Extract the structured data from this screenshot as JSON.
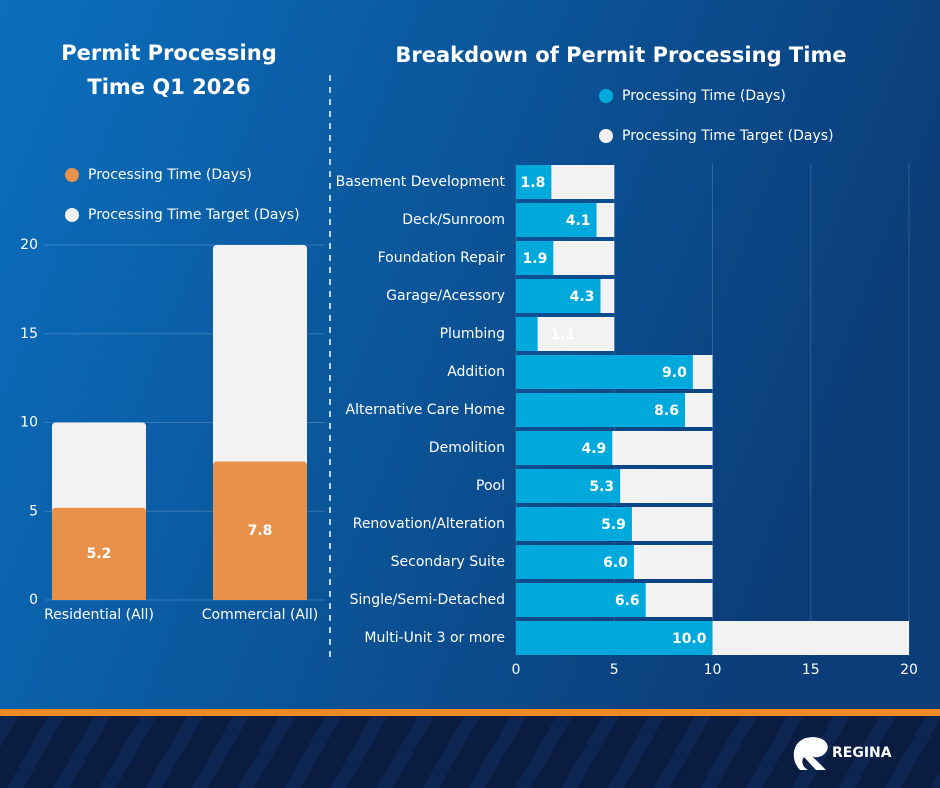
{
  "chart_data": [
    {
      "type": "bar",
      "orientation": "vertical",
      "barmode": "overlay",
      "title": "Permit Processing Time Q1 2026",
      "categories": [
        "Residential (All)",
        "Commercial (All)"
      ],
      "series": [
        {
          "name": "Processing Time (Days)",
          "color": "#e8914a",
          "values": [
            5.2,
            7.8
          ]
        },
        {
          "name": "Processing Time Target (Days)",
          "color": "#f2f2f2",
          "values": [
            10,
            20
          ]
        }
      ],
      "ylim": [
        0,
        20
      ],
      "yticks": [
        0,
        5,
        10,
        15,
        20
      ],
      "grid": true
    },
    {
      "type": "bar",
      "orientation": "horizontal",
      "barmode": "overlay",
      "title": "Breakdown of Permit Processing Time",
      "categories": [
        "Basement Development",
        "Deck/Sunroom",
        "Foundation Repair",
        "Garage/Acessory",
        "Plumbing",
        "Addition",
        "Alternative Care Home",
        "Demolition",
        "Pool",
        "Renovation/Alteration",
        "Secondary Suite",
        "Single/Semi-Detached",
        "Multi-Unit 3 or more"
      ],
      "series": [
        {
          "name": "Processing Time (Days)",
          "color": "#00a9dc",
          "values": [
            1.8,
            4.1,
            1.9,
            4.3,
            1.1,
            9,
            8.6,
            4.9,
            5.3,
            5.9,
            6,
            6.6,
            10
          ],
          "value_labels": [
            "1.8",
            "4.1",
            "1.9",
            "4.3",
            "1.1",
            "9.0",
            "8.6",
            "4.9",
            "5.3",
            "5.9",
            "6.0",
            "6.6",
            "10.0"
          ]
        },
        {
          "name": "Processing Time Target (Days)",
          "color": "#f2f2f2",
          "values": [
            5,
            5,
            5,
            5,
            5,
            10,
            10,
            10,
            10,
            10,
            10,
            10,
            20
          ]
        }
      ],
      "xlim": [
        0,
        20
      ],
      "xticks": [
        0,
        5,
        10,
        15,
        20
      ],
      "grid": true
    }
  ],
  "footer": {
    "brand": "REGINA"
  }
}
